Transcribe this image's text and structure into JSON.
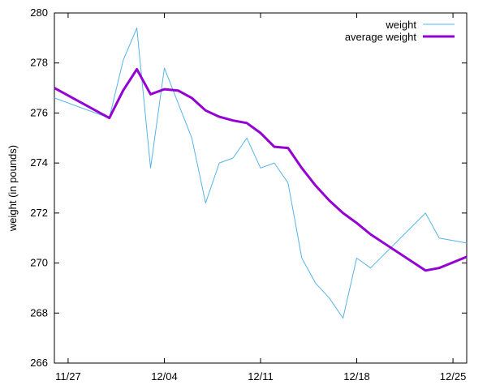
{
  "chart_data": {
    "type": "line",
    "title": "",
    "xlabel": "",
    "ylabel": "weight (in pounds)",
    "x_ticks": [
      "11/27",
      "12/04",
      "12/11",
      "12/18",
      "12/25"
    ],
    "x_tick_dates": [
      "2021-11-27",
      "2021-12-04",
      "2021-12-11",
      "2021-12-18",
      "2021-12-25"
    ],
    "xlim": [
      "2021-11-26",
      "2021-12-26"
    ],
    "ylim": [
      266,
      280
    ],
    "y_ticks": [
      266,
      268,
      270,
      272,
      274,
      276,
      278,
      280
    ],
    "grid": false,
    "legend_position": "top-right",
    "series": [
      {
        "name": "weight",
        "color": "#56b4e9",
        "x": [
          "2021-11-26",
          "2021-11-30",
          "2021-12-01",
          "2021-12-02",
          "2021-12-03",
          "2021-12-04",
          "2021-12-05",
          "2021-12-06",
          "2021-12-07",
          "2021-12-08",
          "2021-12-09",
          "2021-12-10",
          "2021-12-11",
          "2021-12-12",
          "2021-12-13",
          "2021-12-14",
          "2021-12-15",
          "2021-12-16",
          "2021-12-17",
          "2021-12-18",
          "2021-12-19",
          "2021-12-23",
          "2021-12-24",
          "2021-12-26"
        ],
        "y": [
          276.6,
          275.8,
          278.1,
          279.4,
          273.8,
          277.8,
          276.4,
          275.0,
          272.4,
          274.0,
          274.2,
          275.0,
          273.8,
          274.0,
          273.2,
          270.2,
          269.2,
          268.6,
          267.8,
          270.2,
          269.8,
          272.0,
          271.0,
          270.8
        ]
      },
      {
        "name": "average weight",
        "color": "#9400d3",
        "x": [
          "2021-11-26",
          "2021-11-30",
          "2021-12-01",
          "2021-12-02",
          "2021-12-03",
          "2021-12-04",
          "2021-12-05",
          "2021-12-06",
          "2021-12-07",
          "2021-12-08",
          "2021-12-09",
          "2021-12-10",
          "2021-12-11",
          "2021-12-12",
          "2021-12-13",
          "2021-12-14",
          "2021-12-15",
          "2021-12-16",
          "2021-12-17",
          "2021-12-18",
          "2021-12-19",
          "2021-12-23",
          "2021-12-24",
          "2021-12-26"
        ],
        "y": [
          277.0,
          275.8,
          276.9,
          277.75,
          276.75,
          276.95,
          276.9,
          276.6,
          276.1,
          275.85,
          275.7,
          275.6,
          275.2,
          274.65,
          274.6,
          273.8,
          273.1,
          272.5,
          272.0,
          271.6,
          271.15,
          269.7,
          269.8,
          270.25
        ]
      }
    ]
  }
}
